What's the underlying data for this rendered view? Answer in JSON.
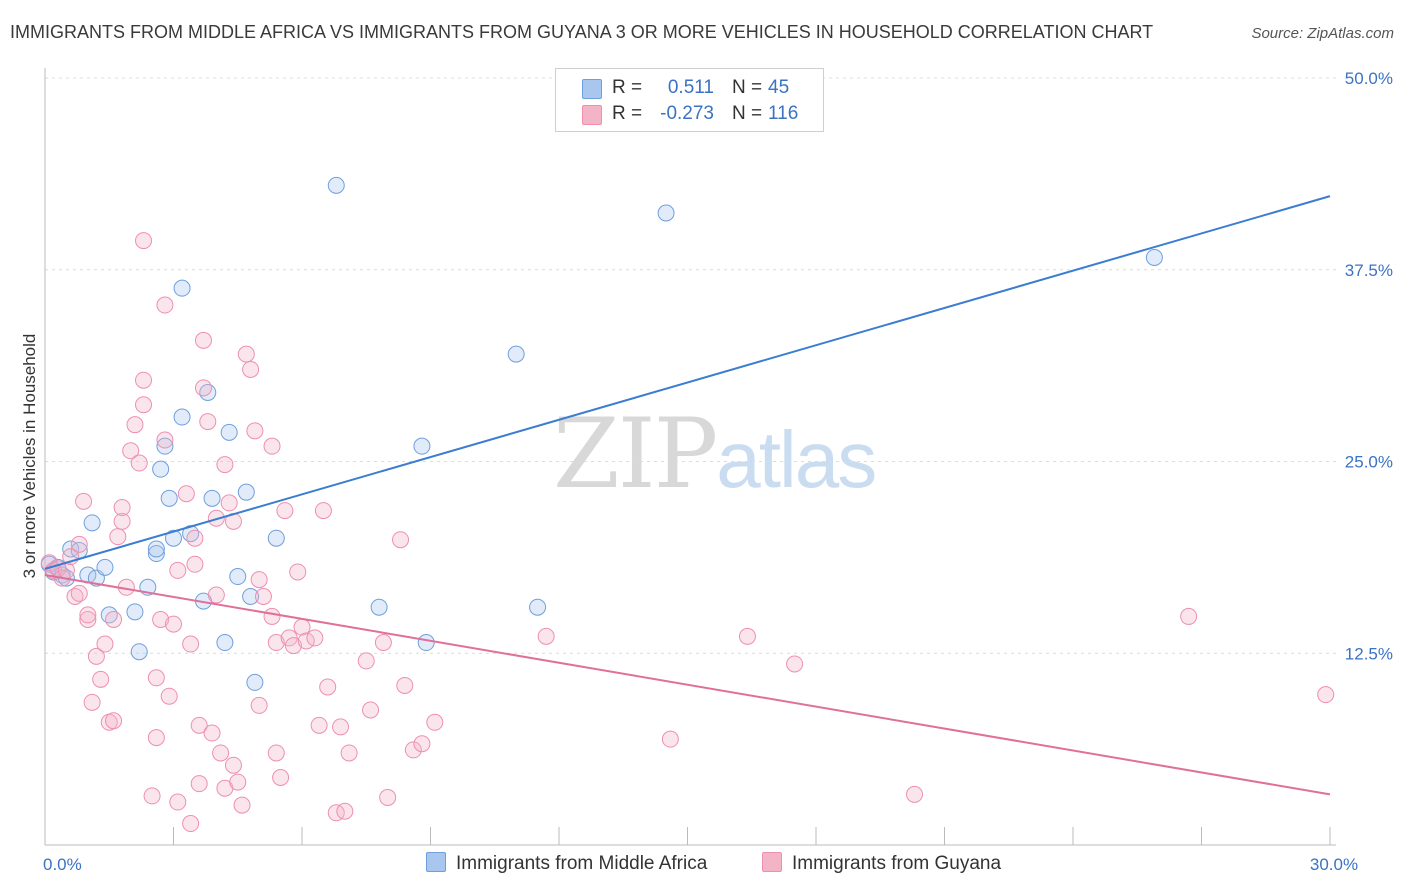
{
  "title": "IMMIGRANTS FROM MIDDLE AFRICA VS IMMIGRANTS FROM GUYANA 3 OR MORE VEHICLES IN HOUSEHOLD CORRELATION CHART",
  "source": "Source: ZipAtlas.com",
  "watermark": {
    "zip": "ZIP",
    "atlas": "atlas"
  },
  "stats": [
    {
      "r_label": "R =",
      "r_value": "0.511",
      "n_label": "N =",
      "n_value": "45",
      "color": "#a9c6ee",
      "value_color": "#3a73c4"
    },
    {
      "r_label": "R =",
      "r_value": "-0.273",
      "n_label": "N =",
      "n_value": "116",
      "color": "#f4b4c8",
      "value_color": "#3a73c4"
    }
  ],
  "legend": [
    {
      "label": "Immigrants from Middle Africa",
      "color": "#a9c6ee"
    },
    {
      "label": "Immigrants from Guyana",
      "color": "#f4b4c8"
    }
  ],
  "chart_data": {
    "type": "scatter",
    "title": "IMMIGRANTS FROM MIDDLE AFRICA VS IMMIGRANTS FROM GUYANA 3 OR MORE VEHICLES IN HOUSEHOLD CORRELATION CHART",
    "xlabel": "",
    "ylabel": "3 or more Vehicles in Household",
    "xlim": [
      0,
      30
    ],
    "ylim": [
      0,
      50
    ],
    "x_ticks": [
      0,
      3,
      6,
      9,
      12,
      15,
      18,
      21,
      24,
      27,
      30
    ],
    "x_tick_labels": [
      {
        "value": 0,
        "label": "0.0%"
      },
      {
        "value": 30,
        "label": "30.0%"
      }
    ],
    "y_ticks": [
      {
        "value": 12.5,
        "label": "12.5%"
      },
      {
        "value": 25,
        "label": "25.0%"
      },
      {
        "value": 37.5,
        "label": "37.5%"
      },
      {
        "value": 50,
        "label": "50.0%"
      }
    ],
    "grid": true,
    "legend_position": "bottom",
    "series": [
      {
        "name": "Immigrants from Middle Africa",
        "color": "#6f9fdc",
        "fill": "#a9c6ee",
        "trend": {
          "x": [
            0,
            30
          ],
          "y": [
            18.0,
            42.3
          ],
          "color": "#3b7dd1"
        },
        "points": [
          [
            0.1,
            18.3
          ],
          [
            0.2,
            17.8
          ],
          [
            0.3,
            18.1
          ],
          [
            0.4,
            17.6
          ],
          [
            0.5,
            17.4
          ],
          [
            0.6,
            19.3
          ],
          [
            0.8,
            19.2
          ],
          [
            1.0,
            17.6
          ],
          [
            1.1,
            21.0
          ],
          [
            1.2,
            17.4
          ],
          [
            1.4,
            18.1
          ],
          [
            1.5,
            15.0
          ],
          [
            2.1,
            15.2
          ],
          [
            2.2,
            12.6
          ],
          [
            2.4,
            16.8
          ],
          [
            2.6,
            19.0
          ],
          [
            2.6,
            19.3
          ],
          [
            2.7,
            24.5
          ],
          [
            2.8,
            26.0
          ],
          [
            2.9,
            22.6
          ],
          [
            3.0,
            20.0
          ],
          [
            3.2,
            27.9
          ],
          [
            3.2,
            36.3
          ],
          [
            3.4,
            20.3
          ],
          [
            3.7,
            15.9
          ],
          [
            3.8,
            29.5
          ],
          [
            3.9,
            22.6
          ],
          [
            4.2,
            13.2
          ],
          [
            4.3,
            26.9
          ],
          [
            4.5,
            17.5
          ],
          [
            4.7,
            23.0
          ],
          [
            4.8,
            16.2
          ],
          [
            4.9,
            10.6
          ],
          [
            5.4,
            20.0
          ],
          [
            6.8,
            43.0
          ],
          [
            7.8,
            15.5
          ],
          [
            8.8,
            26.0
          ],
          [
            8.9,
            13.2
          ],
          [
            11.0,
            32.0
          ],
          [
            11.5,
            15.5
          ],
          [
            14.5,
            41.2
          ],
          [
            25.9,
            38.3
          ]
        ]
      },
      {
        "name": "Immigrants from Guyana",
        "color": "#ee8fb0",
        "fill": "#f4b4c8",
        "trend": {
          "x": [
            0,
            30
          ],
          "y": [
            17.6,
            3.3
          ],
          "color": "#e0709a"
        },
        "points": [
          [
            0.1,
            18.4
          ],
          [
            0.2,
            17.9
          ],
          [
            0.3,
            18.0
          ],
          [
            0.4,
            17.4
          ],
          [
            0.5,
            17.9
          ],
          [
            0.6,
            18.8
          ],
          [
            0.7,
            16.2
          ],
          [
            0.8,
            16.4
          ],
          [
            0.8,
            19.6
          ],
          [
            0.9,
            22.4
          ],
          [
            1.0,
            14.7
          ],
          [
            1.0,
            15.0
          ],
          [
            1.1,
            9.3
          ],
          [
            1.2,
            12.3
          ],
          [
            1.3,
            10.8
          ],
          [
            1.4,
            13.1
          ],
          [
            1.5,
            8.0
          ],
          [
            1.6,
            14.7
          ],
          [
            1.6,
            8.1
          ],
          [
            1.7,
            20.1
          ],
          [
            1.8,
            21.1
          ],
          [
            1.8,
            22.0
          ],
          [
            1.9,
            16.8
          ],
          [
            2.0,
            25.7
          ],
          [
            2.1,
            27.4
          ],
          [
            2.2,
            24.9
          ],
          [
            2.3,
            28.7
          ],
          [
            2.3,
            30.3
          ],
          [
            2.3,
            39.4
          ],
          [
            2.5,
            3.2
          ],
          [
            2.6,
            10.9
          ],
          [
            2.6,
            7.0
          ],
          [
            2.7,
            14.7
          ],
          [
            2.8,
            26.4
          ],
          [
            2.8,
            35.2
          ],
          [
            2.9,
            9.7
          ],
          [
            3.0,
            14.4
          ],
          [
            3.1,
            17.9
          ],
          [
            3.1,
            2.8
          ],
          [
            3.3,
            22.9
          ],
          [
            3.4,
            1.4
          ],
          [
            3.4,
            13.1
          ],
          [
            3.5,
            20.0
          ],
          [
            3.5,
            18.3
          ],
          [
            3.6,
            7.8
          ],
          [
            3.6,
            4.0
          ],
          [
            3.7,
            32.9
          ],
          [
            3.7,
            29.8
          ],
          [
            3.8,
            27.6
          ],
          [
            3.9,
            7.3
          ],
          [
            4.0,
            21.3
          ],
          [
            4.0,
            16.3
          ],
          [
            4.1,
            6.0
          ],
          [
            4.2,
            24.8
          ],
          [
            4.2,
            3.7
          ],
          [
            4.3,
            22.3
          ],
          [
            4.4,
            21.1
          ],
          [
            4.4,
            5.2
          ],
          [
            4.5,
            4.1
          ],
          [
            4.6,
            2.6
          ],
          [
            4.7,
            32.0
          ],
          [
            4.8,
            31.0
          ],
          [
            4.9,
            27.0
          ],
          [
            5.0,
            9.1
          ],
          [
            5.0,
            17.3
          ],
          [
            5.1,
            16.2
          ],
          [
            5.3,
            26.0
          ],
          [
            5.3,
            14.9
          ],
          [
            5.4,
            13.2
          ],
          [
            5.4,
            6.0
          ],
          [
            5.5,
            4.4
          ],
          [
            5.6,
            21.8
          ],
          [
            5.7,
            13.5
          ],
          [
            5.8,
            13.0
          ],
          [
            5.9,
            17.8
          ],
          [
            6.0,
            14.2
          ],
          [
            6.1,
            13.3
          ],
          [
            6.3,
            13.5
          ],
          [
            6.4,
            7.8
          ],
          [
            6.5,
            21.8
          ],
          [
            6.6,
            10.3
          ],
          [
            6.8,
            2.1
          ],
          [
            6.9,
            7.7
          ],
          [
            7.0,
            2.2
          ],
          [
            7.1,
            6.0
          ],
          [
            7.5,
            12.0
          ],
          [
            7.6,
            8.8
          ],
          [
            7.9,
            13.2
          ],
          [
            8.0,
            3.1
          ],
          [
            8.3,
            19.9
          ],
          [
            8.4,
            10.4
          ],
          [
            8.6,
            6.2
          ],
          [
            8.8,
            6.6
          ],
          [
            9.1,
            8.0
          ],
          [
            11.7,
            13.6
          ],
          [
            14.6,
            6.9
          ],
          [
            16.4,
            13.6
          ],
          [
            17.5,
            11.8
          ],
          [
            20.3,
            3.3
          ],
          [
            26.7,
            14.9
          ],
          [
            29.9,
            9.8
          ]
        ]
      }
    ]
  }
}
